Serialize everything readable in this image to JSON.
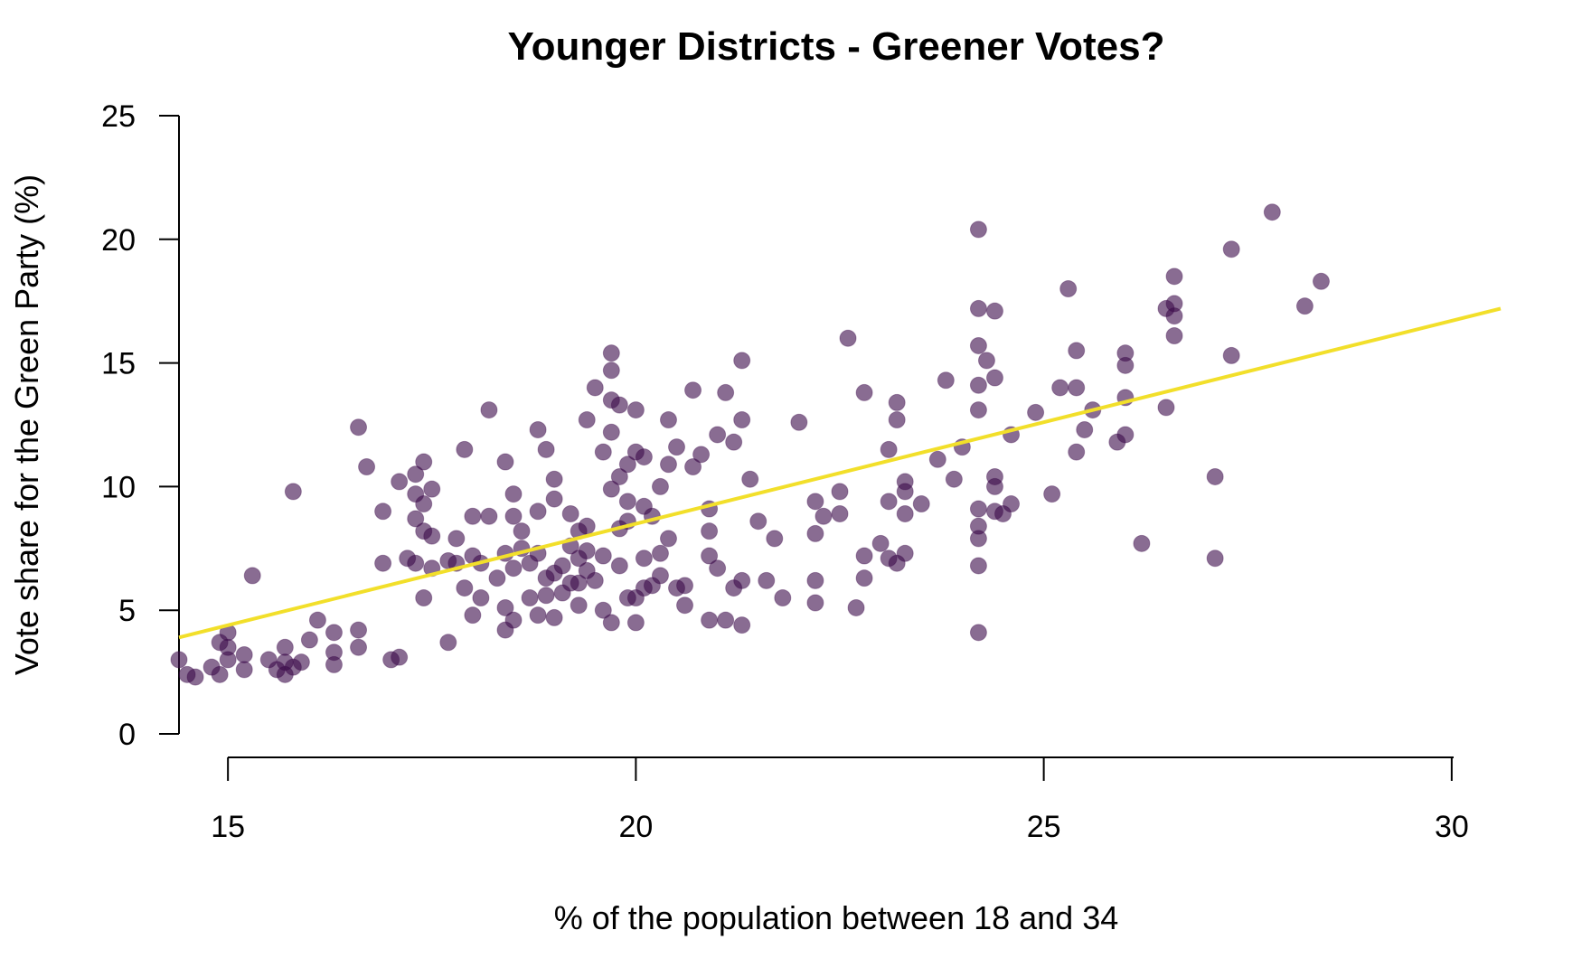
{
  "chart_data": {
    "type": "scatter",
    "title": "Younger Districts - Greener Votes?",
    "xlabel": "% of the population between 18 and 34",
    "ylabel": "Vote share for the Green Party (%)",
    "xlim": [
      14.4,
      30.6
    ],
    "ylim": [
      0,
      25
    ],
    "xticks": [
      "15",
      "20",
      "25",
      "30"
    ],
    "yticks": [
      "0",
      "5",
      "10",
      "15",
      "20",
      "25"
    ],
    "grid": false,
    "point_color": "#3b0a4a",
    "point_opacity": 0.6,
    "fit_line_color": "#f2df2a",
    "fit_line": {
      "x": [
        14.4,
        30.6
      ],
      "y": [
        3.9,
        17.2
      ]
    },
    "x": [
      14.4,
      14.5,
      14.6,
      14.8,
      14.9,
      14.9,
      15.0,
      15.0,
      15.0,
      15.2,
      15.2,
      15.3,
      15.5,
      15.6,
      15.7,
      15.7,
      15.7,
      15.8,
      15.8,
      15.9,
      16.0,
      16.1,
      16.3,
      16.3,
      16.3,
      16.6,
      16.6,
      16.6,
      16.7,
      16.9,
      16.9,
      17.0,
      17.1,
      17.1,
      17.2,
      17.3,
      17.3,
      17.3,
      17.3,
      17.4,
      17.4,
      17.4,
      17.4,
      17.5,
      17.5,
      17.5,
      17.7,
      17.7,
      17.8,
      17.8,
      17.9,
      17.9,
      18.0,
      18.0,
      18.0,
      18.1,
      18.1,
      18.2,
      18.2,
      18.3,
      18.4,
      18.4,
      18.4,
      18.4,
      18.5,
      18.5,
      18.5,
      18.5,
      18.6,
      18.6,
      18.7,
      18.7,
      18.8,
      18.8,
      18.8,
      18.8,
      18.9,
      18.9,
      18.9,
      19.0,
      19.0,
      19.0,
      19.0,
      19.1,
      19.1,
      19.2,
      19.2,
      19.2,
      19.3,
      19.3,
      19.3,
      19.3,
      19.4,
      19.4,
      19.4,
      19.4,
      19.5,
      19.5,
      19.6,
      19.6,
      19.6,
      19.7,
      19.7,
      19.7,
      19.7,
      19.7,
      19.7,
      19.8,
      19.8,
      19.8,
      19.8,
      19.9,
      19.9,
      19.9,
      19.9,
      20.0,
      20.0,
      20.0,
      20.0,
      20.1,
      20.1,
      20.1,
      20.1,
      20.2,
      20.2,
      20.3,
      20.3,
      20.3,
      20.4,
      20.4,
      20.4,
      20.5,
      20.5,
      20.6,
      20.6,
      20.7,
      20.7,
      20.8,
      20.9,
      20.9,
      20.9,
      20.9,
      21.0,
      21.0,
      21.1,
      21.1,
      21.2,
      21.2,
      21.3,
      21.3,
      21.3,
      21.3,
      21.4,
      21.5,
      21.6,
      21.7,
      21.8,
      22.0,
      22.2,
      22.2,
      22.2,
      22.2,
      22.3,
      22.5,
      22.5,
      22.6,
      22.7,
      22.8,
      22.8,
      22.8,
      23.0,
      23.1,
      23.1,
      23.1,
      23.2,
      23.2,
      23.2,
      23.3,
      23.3,
      23.3,
      23.3,
      23.5,
      23.7,
      23.8,
      23.9,
      24.0,
      24.2,
      24.2,
      24.2,
      24.2,
      24.2,
      24.2,
      24.2,
      24.2,
      24.2,
      24.2,
      24.3,
      24.4,
      24.4,
      24.4,
      24.4,
      24.4,
      24.5,
      24.6,
      24.6,
      24.9,
      25.1,
      25.2,
      25.3,
      25.4,
      25.4,
      25.4,
      25.5,
      25.6,
      25.9,
      26.0,
      26.0,
      26.0,
      26.0,
      26.2,
      26.5,
      26.5,
      26.6,
      26.6,
      26.6,
      26.6,
      27.1,
      27.1,
      27.3,
      27.3,
      27.8,
      28.2,
      28.4
    ],
    "y": [
      3.0,
      2.4,
      2.3,
      2.7,
      2.4,
      3.7,
      3.0,
      3.5,
      4.1,
      2.6,
      3.2,
      6.4,
      3.0,
      2.6,
      2.4,
      3.5,
      2.9,
      2.7,
      9.8,
      2.9,
      3.8,
      4.6,
      2.8,
      3.3,
      4.1,
      3.5,
      4.2,
      12.4,
      10.8,
      6.9,
      9.0,
      3.0,
      3.1,
      10.2,
      7.1,
      6.9,
      8.7,
      9.7,
      10.5,
      5.5,
      8.2,
      9.3,
      11.0,
      6.7,
      8.0,
      9.9,
      3.7,
      7.0,
      6.9,
      7.9,
      5.9,
      11.5,
      4.8,
      7.2,
      8.8,
      5.5,
      6.9,
      8.8,
      13.1,
      6.3,
      4.2,
      5.1,
      7.3,
      11.0,
      4.6,
      6.7,
      8.8,
      9.7,
      7.5,
      8.2,
      5.5,
      6.9,
      4.8,
      7.3,
      9.0,
      12.3,
      5.6,
      6.3,
      11.5,
      4.7,
      6.5,
      9.5,
      10.3,
      5.7,
      6.8,
      6.1,
      7.6,
      8.9,
      5.2,
      6.1,
      7.1,
      8.2,
      6.6,
      7.4,
      8.4,
      12.7,
      6.2,
      14.0,
      5.0,
      7.2,
      11.4,
      4.5,
      9.9,
      12.2,
      13.5,
      14.7,
      15.4,
      6.8,
      8.3,
      10.4,
      13.3,
      5.5,
      8.6,
      9.4,
      10.9,
      4.5,
      5.5,
      11.4,
      13.1,
      5.9,
      7.1,
      9.2,
      11.2,
      6.0,
      8.8,
      6.4,
      7.3,
      10.0,
      7.9,
      10.9,
      12.7,
      5.9,
      11.6,
      5.2,
      6.0,
      10.8,
      13.9,
      11.3,
      4.6,
      7.2,
      8.2,
      9.1,
      6.7,
      12.1,
      4.6,
      13.8,
      5.9,
      11.8,
      4.4,
      6.2,
      12.7,
      15.1,
      10.3,
      8.6,
      6.2,
      7.9,
      5.5,
      12.6,
      5.3,
      6.2,
      8.1,
      9.4,
      8.8,
      8.9,
      9.8,
      16.0,
      5.1,
      6.3,
      7.2,
      13.8,
      7.7,
      7.1,
      9.4,
      11.5,
      6.9,
      12.7,
      13.4,
      7.3,
      8.9,
      9.8,
      10.2,
      9.3,
      11.1,
      14.3,
      10.3,
      11.6,
      4.1,
      6.8,
      7.9,
      8.4,
      9.1,
      13.1,
      14.1,
      15.7,
      17.2,
      20.4,
      15.1,
      9.0,
      10.0,
      10.4,
      14.4,
      17.1,
      8.9,
      9.3,
      12.1,
      13.0,
      9.7,
      14.0,
      18.0,
      11.4,
      14.0,
      15.5,
      12.3,
      13.1,
      11.8,
      12.1,
      13.6,
      14.9,
      15.4,
      7.7,
      13.2,
      17.2,
      16.1,
      16.9,
      17.4,
      18.5,
      7.1,
      10.4,
      15.3,
      19.6,
      21.1,
      17.3,
      18.3
    ]
  }
}
